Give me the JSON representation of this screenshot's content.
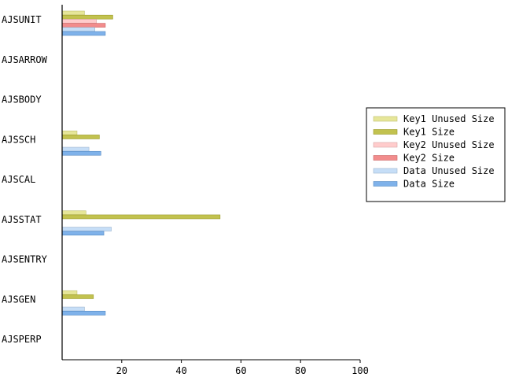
{
  "chart_data": {
    "type": "bar",
    "orientation": "horizontal",
    "categories": [
      "AJSUNIT",
      "AJSARROW",
      "AJSBODY",
      "AJSSCH",
      "AJSCAL",
      "AJSSTAT",
      "AJSENTRY",
      "AJSGEN",
      "AJSPERP"
    ],
    "series": [
      {
        "name": "Key1 Unused Size",
        "color": "#e6e699",
        "values": [
          7.5,
          0,
          0,
          5,
          0,
          8,
          0,
          5,
          0
        ]
      },
      {
        "name": "Key1 Size",
        "color": "#c2c24f",
        "values": [
          17,
          0,
          0,
          12.5,
          0,
          53,
          0,
          10.5,
          0
        ]
      },
      {
        "name": "Key2 Unused Size",
        "color": "#ffcccc",
        "values": [
          11.5,
          0,
          0,
          0,
          0,
          0,
          0,
          0,
          0
        ]
      },
      {
        "name": "Key2 Size",
        "color": "#f28c8c",
        "values": [
          14.5,
          0,
          0,
          0,
          0,
          0,
          0,
          0,
          0
        ]
      },
      {
        "name": "Data Unused Size",
        "color": "#c6def7",
        "values": [
          11,
          0,
          0,
          9,
          0,
          16.5,
          0,
          7.5,
          0
        ]
      },
      {
        "name": "Data Size",
        "color": "#7fb2ea",
        "values": [
          14.5,
          0,
          0,
          13,
          0,
          14,
          0,
          14.5,
          0
        ]
      }
    ],
    "xlim": [
      0,
      100
    ],
    "xticks": [
      20,
      40,
      60,
      80,
      100
    ],
    "grid": false,
    "legend_position": "right"
  }
}
